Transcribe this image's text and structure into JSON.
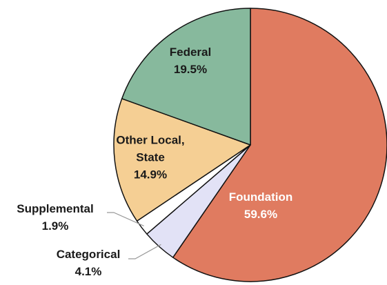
{
  "chart_data": {
    "type": "pie",
    "categories": [
      "Foundation",
      "Categorical",
      "Supplemental",
      "Other Local, State",
      "Federal"
    ],
    "values": [
      59.6,
      4.1,
      1.9,
      14.9,
      19.5
    ],
    "value_labels": [
      "59.6%",
      "4.1%",
      "1.9%",
      "14.9%",
      "19.5%"
    ],
    "colors": [
      "#e07b60",
      "#e2e2f6",
      "#ffffff",
      "#f5cf94",
      "#87b99d"
    ]
  }
}
